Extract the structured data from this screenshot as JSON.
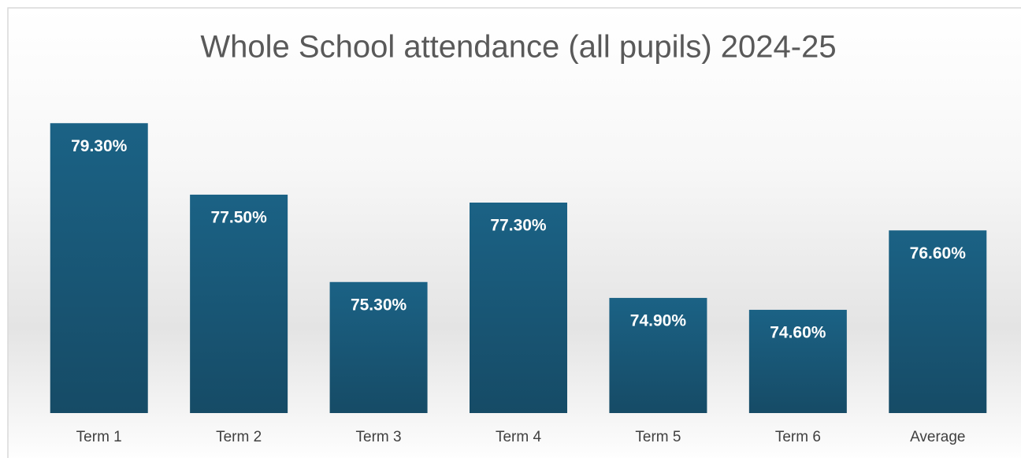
{
  "chart_data": {
    "type": "bar",
    "title": "Whole School attendance (all pupils) 2024-25",
    "categories": [
      "Term 1",
      "Term 2",
      "Term 3",
      "Term 4",
      "Term 5",
      "Term 6",
      "Average"
    ],
    "values": [
      79.3,
      77.5,
      75.3,
      77.3,
      74.9,
      74.6,
      76.6
    ],
    "value_labels": [
      "79.30%",
      "77.50%",
      "75.30%",
      "77.30%",
      "74.90%",
      "74.60%",
      "76.60%"
    ],
    "color": "#1a5f80",
    "ylim": [
      72,
      80
    ],
    "grid": false
  }
}
